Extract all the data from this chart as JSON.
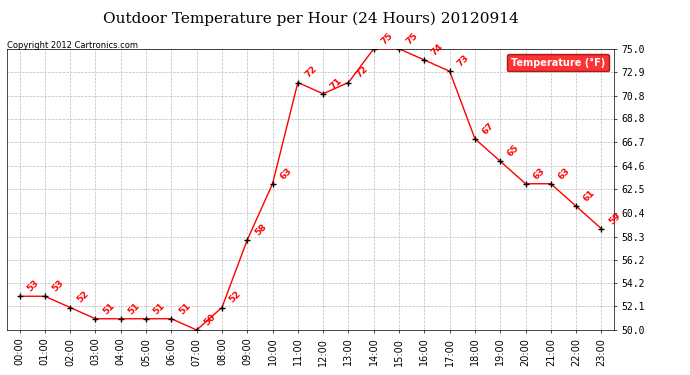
{
  "title": "Outdoor Temperature per Hour (24 Hours) 20120914",
  "copyright": "Copyright 2012 Cartronics.com",
  "legend_label": "Temperature (°F)",
  "hours": [
    "00:00",
    "01:00",
    "02:00",
    "03:00",
    "04:00",
    "05:00",
    "06:00",
    "07:00",
    "08:00",
    "09:00",
    "10:00",
    "11:00",
    "12:00",
    "13:00",
    "14:00",
    "15:00",
    "16:00",
    "17:00",
    "18:00",
    "19:00",
    "20:00",
    "21:00",
    "22:00",
    "23:00"
  ],
  "temps": [
    53,
    53,
    52,
    51,
    51,
    51,
    51,
    50,
    52,
    58,
    63,
    72,
    71,
    72,
    75,
    75,
    74,
    73,
    67,
    65,
    63,
    63,
    61,
    59
  ],
  "ylim": [
    50.0,
    75.0
  ],
  "yticks": [
    50.0,
    52.1,
    54.2,
    56.2,
    58.3,
    60.4,
    62.5,
    64.6,
    66.7,
    68.8,
    70.8,
    72.9,
    75.0
  ],
  "line_color": "red",
  "marker_color": "black",
  "bg_color": "white",
  "grid_color": "#bbbbbb",
  "title_fontsize": 11,
  "copyright_fontsize": 6,
  "label_fontsize": 7,
  "annot_fontsize": 6.5,
  "legend_bg": "red",
  "legend_fg": "white"
}
